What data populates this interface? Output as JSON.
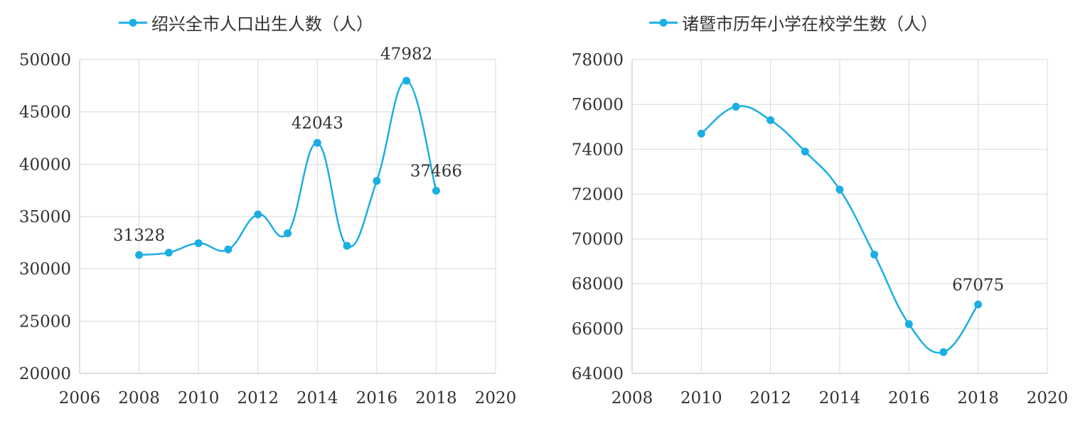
{
  "chart_data": [
    {
      "type": "line",
      "smooth": true,
      "title": "",
      "xlabel": "",
      "ylabel": "",
      "xlim": [
        2006,
        2020
      ],
      "ylim": [
        20000,
        50000
      ],
      "x_ticks": [
        "2006",
        "2008",
        "2010",
        "2012",
        "2014",
        "2016",
        "2018",
        "2020"
      ],
      "y_ticks": [
        "20000",
        "25000",
        "30000",
        "35000",
        "40000",
        "45000",
        "50000"
      ],
      "grid": true,
      "legend_position": "top",
      "series": [
        {
          "name": "绍兴全市人口出生人数（人）",
          "color": "#1AAEE3",
          "x": [
            2008,
            2009,
            2010,
            2011,
            2012,
            2013,
            2014,
            2015,
            2016,
            2017,
            2018
          ],
          "values": [
            31328,
            31550,
            32450,
            31850,
            35200,
            33400,
            42043,
            32200,
            38400,
            47982,
            37466
          ]
        }
      ],
      "data_labels": [
        {
          "x": 2008,
          "text": "31328"
        },
        {
          "x": 2014,
          "text": "42043"
        },
        {
          "x": 2017,
          "text": "47982"
        },
        {
          "x": 2018,
          "text": "37466"
        }
      ]
    },
    {
      "type": "line",
      "smooth": true,
      "title": "",
      "xlabel": "",
      "ylabel": "",
      "xlim": [
        2008,
        2020
      ],
      "ylim": [
        64000,
        78000
      ],
      "x_ticks": [
        "2008",
        "2010",
        "2012",
        "2014",
        "2016",
        "2018",
        "2020"
      ],
      "y_ticks": [
        "64000",
        "66000",
        "68000",
        "70000",
        "72000",
        "74000",
        "76000",
        "78000"
      ],
      "grid": true,
      "legend_position": "top",
      "series": [
        {
          "name": "诸暨市历年小学在校学生数（人）",
          "color": "#1AAEE3",
          "x": [
            2010,
            2011,
            2012,
            2013,
            2014,
            2015,
            2016,
            2017,
            2018
          ],
          "values": [
            74700,
            75900,
            75300,
            73900,
            72200,
            69300,
            66200,
            64950,
            67075
          ]
        }
      ],
      "data_labels": [
        {
          "x": 2018,
          "text": "67075"
        }
      ]
    }
  ]
}
